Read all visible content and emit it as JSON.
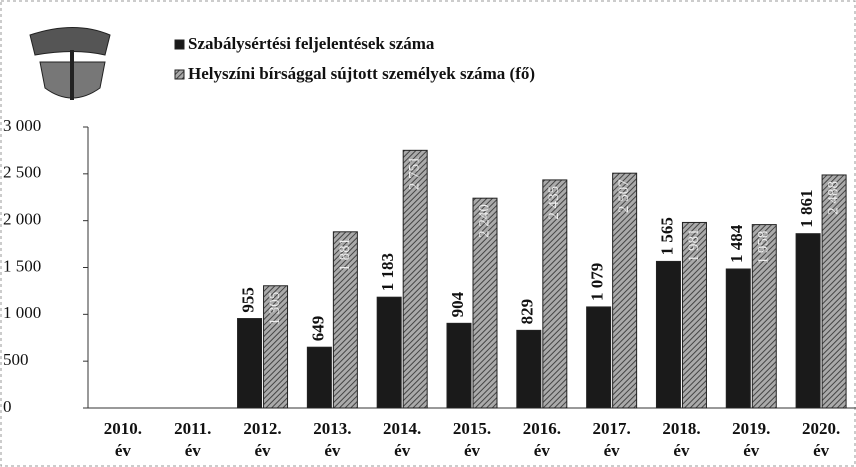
{
  "chart_data": {
    "type": "bar",
    "categories": [
      "2010. év",
      "2011. év",
      "2012. év",
      "2013. év",
      "2014. év",
      "2015. év",
      "2016. év",
      "2017. év",
      "2018. év",
      "2019. év",
      "2020. év"
    ],
    "series": [
      {
        "name": "Szabálysértési feljelentések száma",
        "color": "#1a1a1a",
        "values": [
          null,
          null,
          955,
          649,
          1183,
          904,
          829,
          1079,
          1565,
          1484,
          1861
        ],
        "value_labels": [
          null,
          null,
          "955",
          "649",
          "1 183",
          "904",
          "829",
          "1 079",
          "1 565",
          "1 484",
          "1 861"
        ]
      },
      {
        "name": "Helyszíni bírsággal sújtott személyek száma (fő)",
        "color": "#777777",
        "values": [
          null,
          null,
          1305,
          1881,
          2751,
          2240,
          2435,
          2507,
          1981,
          1958,
          2488
        ],
        "value_labels": [
          null,
          null,
          "1 305",
          "1 881",
          "2 751",
          "2 240",
          "2 435",
          "2 507",
          "1 981",
          "1 958",
          "2 488"
        ]
      }
    ],
    "ylim": [
      0,
      3000
    ],
    "yticks": [
      0,
      500,
      {
        "value": 1000,
        "label": "1 000"
      },
      {
        "value": 1500,
        "label": "1 500"
      },
      {
        "value": 2000,
        "label": "2 000"
      },
      {
        "value": 2500,
        "label": "2 500"
      },
      {
        "value": 3000,
        "label": "3 000"
      }
    ],
    "grid": false
  }
}
